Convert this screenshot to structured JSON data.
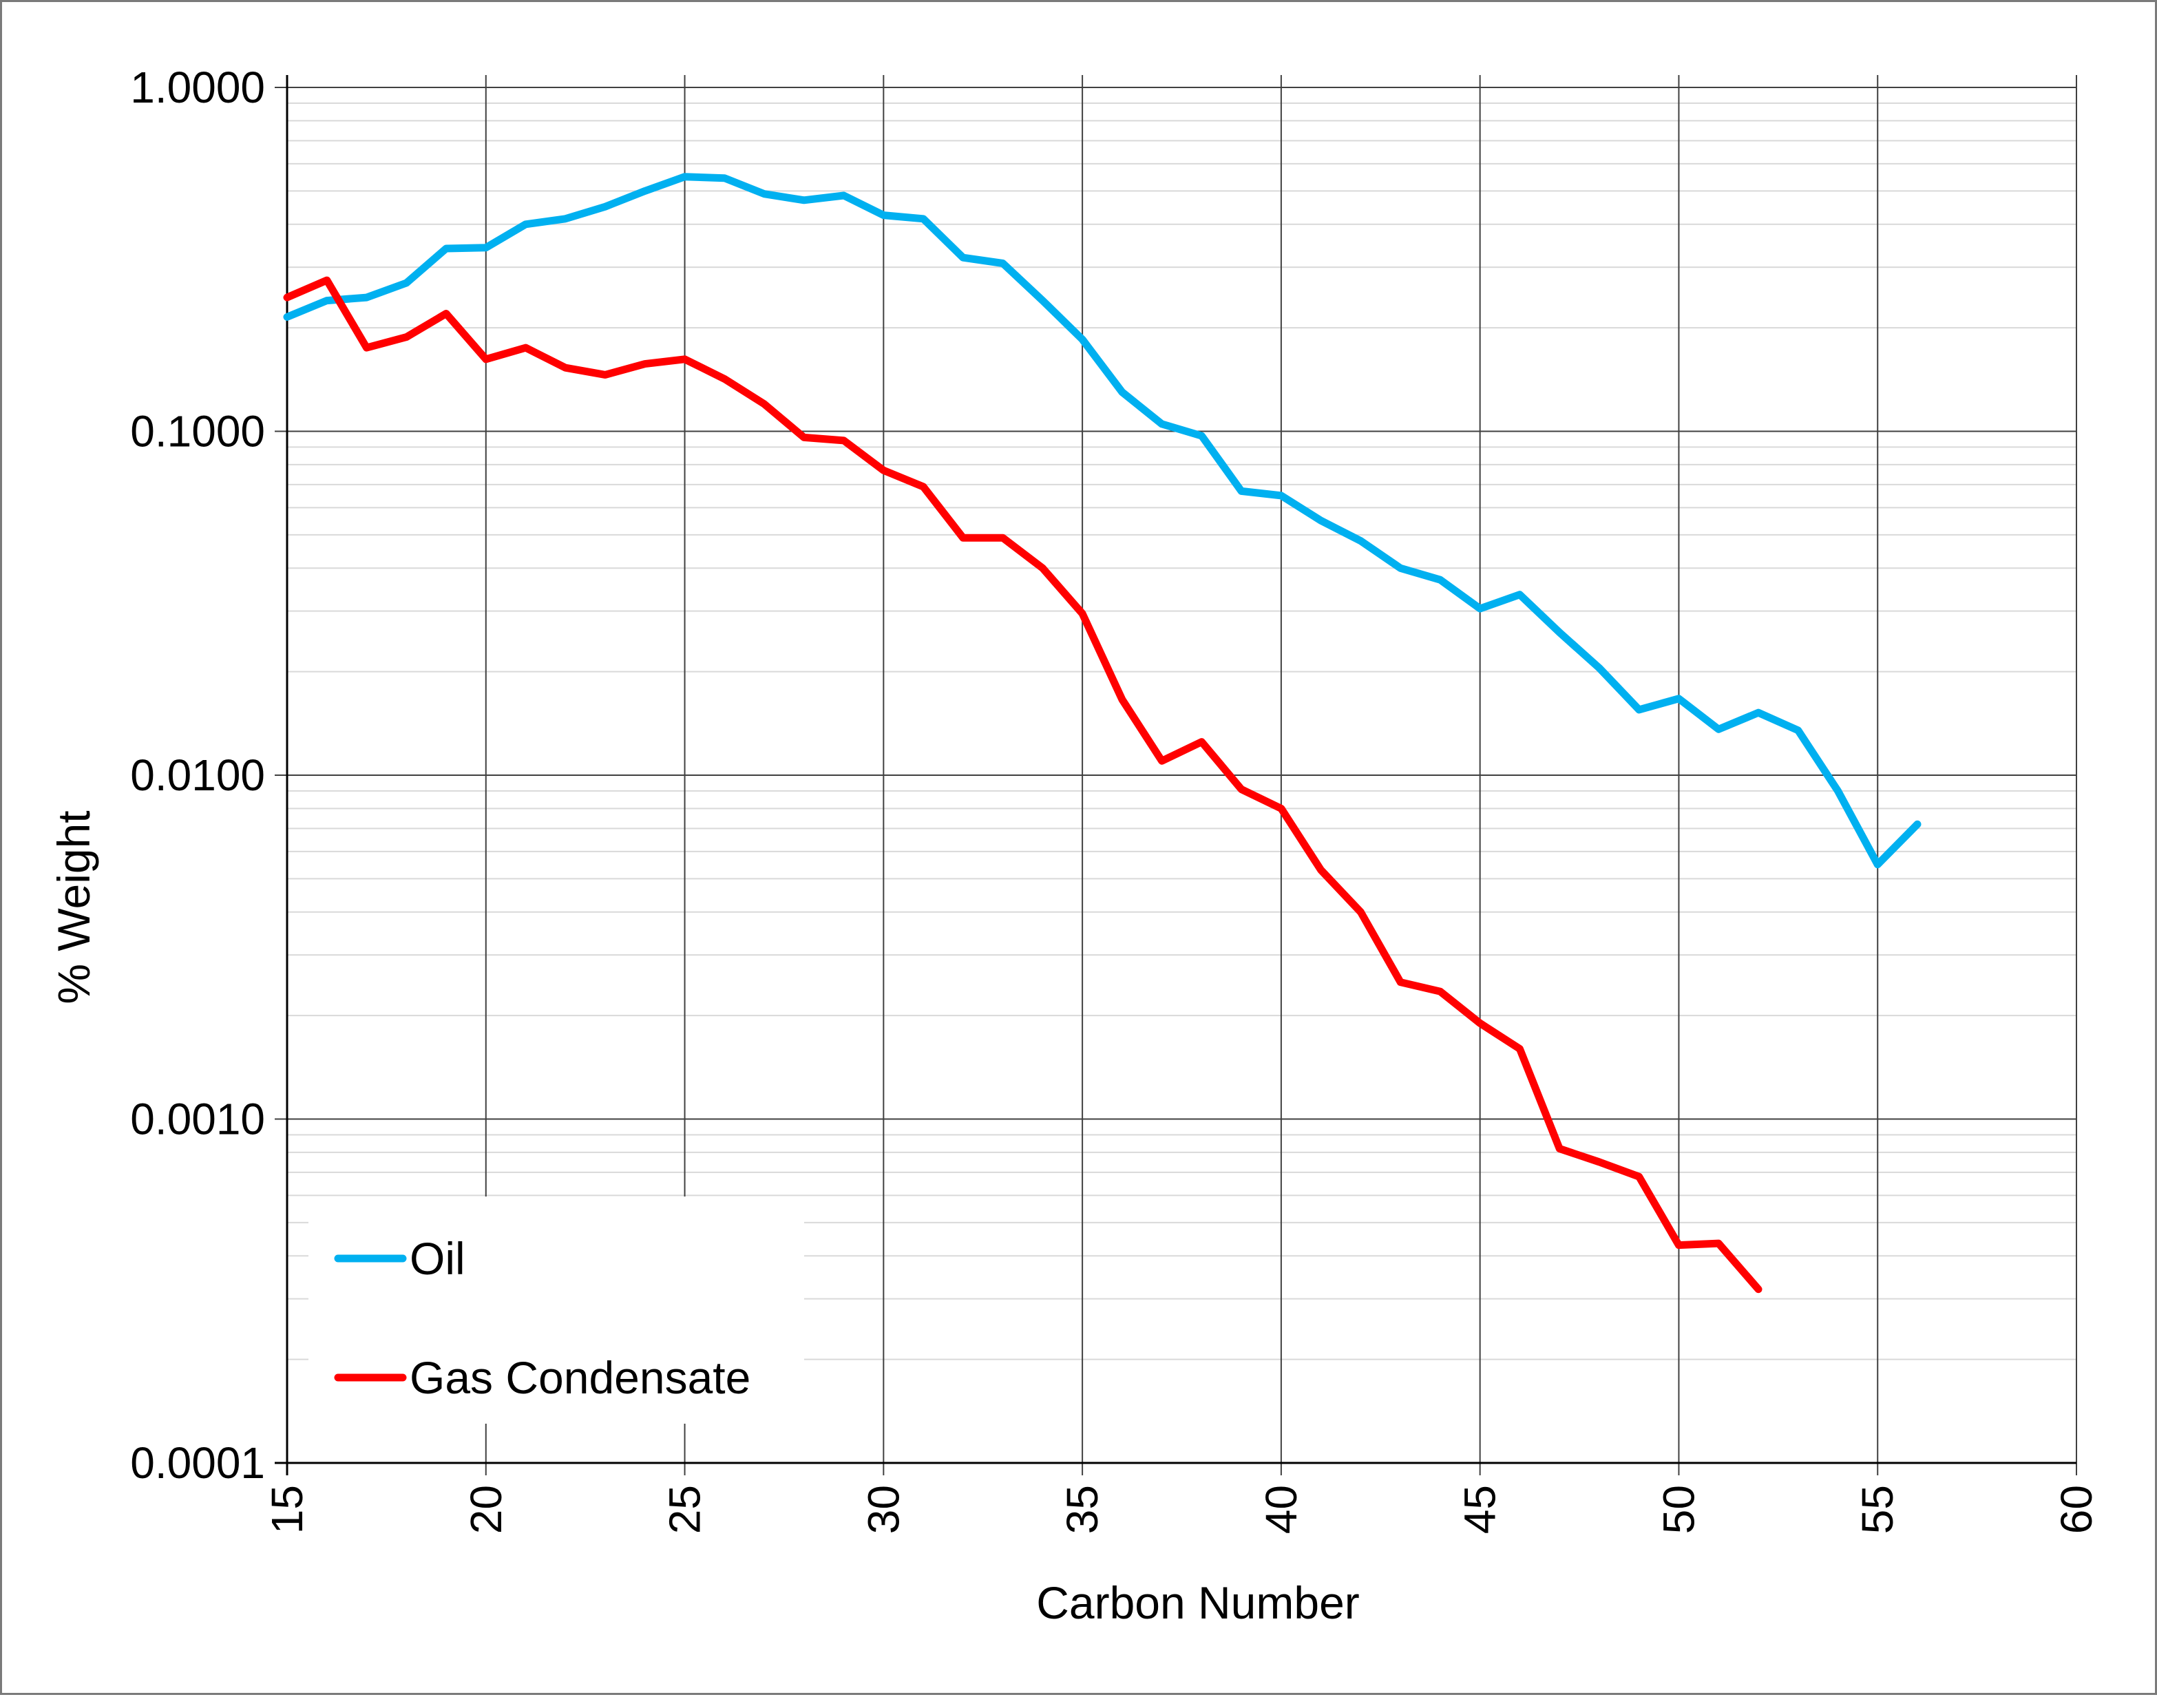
{
  "chart_data": {
    "type": "line",
    "title": "",
    "xlabel": "Carbon Number",
    "ylabel": "% Weight",
    "xlim": [
      15,
      60
    ],
    "ylim": [
      0.0001,
      1.0
    ],
    "yscale": "log",
    "grid": true,
    "legend_position": "bottom-left",
    "x_ticks": [
      "15",
      "20",
      "25",
      "30",
      "35",
      "40",
      "45",
      "50",
      "55",
      "60"
    ],
    "y_ticks": [
      "0.0001",
      "0.0010",
      "0.0100",
      "0.1000",
      "1.0000"
    ],
    "series": [
      {
        "name": "Oil",
        "color": "#00b0f0",
        "x": [
          15,
          16,
          17,
          18,
          19,
          20,
          21,
          22,
          23,
          24,
          25,
          26,
          27,
          28,
          29,
          30,
          31,
          32,
          33,
          34,
          35,
          36,
          37,
          38,
          39,
          40,
          41,
          42,
          43,
          44,
          45,
          46,
          47,
          48,
          49,
          50,
          51,
          52,
          53,
          54,
          55,
          56
        ],
        "values": [
          0.215,
          0.24,
          0.245,
          0.27,
          0.34,
          0.342,
          0.4,
          0.415,
          0.45,
          0.5,
          0.55,
          0.545,
          0.49,
          0.47,
          0.485,
          0.425,
          0.415,
          0.32,
          0.308,
          0.24,
          0.185,
          0.13,
          0.105,
          0.097,
          0.067,
          0.065,
          0.055,
          0.048,
          0.04,
          0.037,
          0.0305,
          0.0335,
          0.026,
          0.0205,
          0.0155,
          0.0167,
          0.0136,
          0.0152,
          0.0135,
          0.009,
          0.0055,
          0.0072
        ]
      },
      {
        "name": "Gas Condensate",
        "color": "#ff0000",
        "x": [
          15,
          16,
          17,
          18,
          19,
          20,
          21,
          22,
          23,
          24,
          25,
          26,
          27,
          28,
          29,
          30,
          31,
          32,
          33,
          34,
          35,
          36,
          37,
          38,
          39,
          40,
          41,
          42,
          43,
          44,
          45,
          46,
          47,
          48,
          49,
          50,
          51,
          52
        ],
        "values": [
          0.245,
          0.275,
          0.175,
          0.188,
          0.22,
          0.162,
          0.175,
          0.153,
          0.146,
          0.157,
          0.162,
          0.142,
          0.12,
          0.096,
          0.094,
          0.077,
          0.069,
          0.049,
          0.049,
          0.04,
          0.0295,
          0.0166,
          0.011,
          0.0125,
          0.0091,
          0.008,
          0.0053,
          0.004,
          0.0025,
          0.00235,
          0.0019,
          0.0016,
          0.00082,
          0.00075,
          0.00068,
          0.00043,
          0.000435,
          0.00032
        ]
      }
    ]
  }
}
